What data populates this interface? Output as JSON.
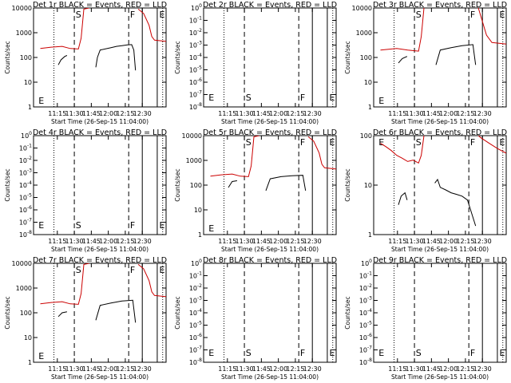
{
  "window": {
    "title": "RHESSI detector quicklook panels"
  },
  "chart_data": [
    {
      "type": "line",
      "title": "Det 1r BLACK = Events, RED = LLD",
      "xlabel": "Start Time (26-Sep-15 11:04:00)",
      "ylabel": "Counts/sec",
      "yscale": "log",
      "ylim": [
        1,
        10000
      ],
      "yticks": [
        "1",
        "10",
        "100",
        "1000",
        "10000"
      ],
      "xticks": [
        "11:15",
        "11:30",
        "11:45",
        "12:00",
        "12:15",
        "12:30"
      ],
      "markers": [
        "E",
        "S",
        "F",
        "E"
      ],
      "series": [
        {
          "name": "Events",
          "color": "#000000",
          "segments": [
            [
              [
                11.33,
                50
              ],
              [
                11.38,
                80
              ],
              [
                11.45,
                110
              ],
              [
                11.49,
                120
              ]
            ],
            [
              [
                12.02,
                40
              ],
              [
                12.05,
                100
              ],
              [
                12.1,
                200
              ],
              [
                12.3,
                250
              ],
              [
                12.4,
                280
              ],
              [
                12.5,
                300
              ],
              [
                12.6,
                320
              ],
              [
                12.68,
                330
              ],
              [
                12.72,
                200
              ],
              [
                12.75,
                30
              ]
            ]
          ]
        },
        {
          "name": "LLD",
          "color": "#cc0000",
          "segments": [
            [
              [
                11.0,
                230
              ],
              [
                11.2,
                260
              ],
              [
                11.4,
                280
              ],
              [
                11.55,
                230
              ],
              [
                11.7,
                220
              ],
              [
                11.75,
                600
              ],
              [
                11.8,
                9000
              ],
              [
                11.9,
                10000
              ]
            ],
            [
              [
                12.8,
                9000
              ],
              [
                12.9,
                6000
              ],
              [
                13.0,
                2000
              ],
              [
                13.05,
                700
              ],
              [
                13.1,
                500
              ],
              [
                13.3,
                450
              ],
              [
                13.5,
                350
              ],
              [
                13.7,
                300
              ],
              [
                13.9,
                270
              ],
              [
                14.1,
                300
              ],
              [
                14.3,
                400
              ],
              [
                14.45,
                450
              ]
            ]
          ]
        }
      ]
    },
    {
      "type": "line",
      "title": "Det 2r BLACK = Events, RED = LLD",
      "xlabel": "Start Time (26-Sep-15 11:04:00)",
      "ylabel": "Counts/sec",
      "yscale": "log",
      "ylim": [
        "10^0",
        "10^-8"
      ],
      "yticks": [
        "10^0",
        "10^-1",
        "10^-2",
        "10^-3",
        "10^-4",
        "10^-5",
        "10^-6",
        "10^-7",
        "10^-8"
      ],
      "xticks": [
        "11:15",
        "11:30",
        "11:45",
        "12:00",
        "12:15",
        "12:30"
      ],
      "markers": [
        "E",
        "S",
        "F",
        "E"
      ],
      "series": []
    },
    {
      "type": "line",
      "title": "Det 3r BLACK = Events, RED = LLD",
      "xlabel": "Start Time (26-Sep-15 11:04:00)",
      "ylabel": "Counts/sec",
      "yscale": "log",
      "ylim": [
        1,
        10000
      ],
      "yticks": [
        "1",
        "10",
        "100",
        "1000",
        "10000"
      ],
      "xticks": [
        "11:15",
        "11:30",
        "11:45",
        "12:00",
        "12:15",
        "12:30"
      ],
      "markers": [
        "E",
        "S",
        "F",
        "E"
      ],
      "series": [
        {
          "name": "Events",
          "color": "#000000",
          "segments": [
            [
              [
                11.33,
                60
              ],
              [
                11.4,
                90
              ],
              [
                11.49,
                110
              ]
            ],
            [
              [
                12.02,
                50
              ],
              [
                12.1,
                200
              ],
              [
                12.3,
                250
              ],
              [
                12.5,
                300
              ],
              [
                12.7,
                330
              ],
              [
                12.75,
                50
              ]
            ]
          ]
        },
        {
          "name": "LLD",
          "color": "#cc0000",
          "segments": [
            [
              [
                11.0,
                200
              ],
              [
                11.3,
                230
              ],
              [
                11.5,
                200
              ],
              [
                11.7,
                180
              ],
              [
                11.75,
                700
              ],
              [
                11.8,
                10000
              ]
            ],
            [
              [
                12.8,
                10000
              ],
              [
                12.95,
                800
              ],
              [
                13.05,
                400
              ],
              [
                13.3,
                350
              ],
              [
                13.6,
                300
              ],
              [
                13.9,
                280
              ],
              [
                14.2,
                300
              ],
              [
                14.45,
                350
              ]
            ]
          ]
        }
      ]
    },
    {
      "type": "line",
      "title": "Det 4r BLACK = Events, RED = LLD",
      "xlabel": "Start Time (26-Sep-15 11:04:00)",
      "ylabel": "Counts/sec",
      "yscale": "log",
      "ylim": [
        "10^0",
        "10^-8"
      ],
      "yticks": [
        "10^0",
        "10^-1",
        "10^-2",
        "10^-3",
        "10^-4",
        "10^-5",
        "10^-6",
        "10^-7",
        "10^-8"
      ],
      "xticks": [
        "11:15",
        "11:30",
        "11:45",
        "12:00",
        "12:15",
        "12:30"
      ],
      "markers": [
        "E",
        "S",
        "F",
        "E"
      ],
      "series": []
    },
    {
      "type": "line",
      "title": "Det 5r BLACK = Events, RED = LLD",
      "xlabel": "Start Time (26-Sep-15 11:04:00)",
      "ylabel": "Counts/sec",
      "yscale": "log",
      "ylim": [
        1,
        10000
      ],
      "yticks": [
        "1",
        "10",
        "100",
        "1000",
        "10000"
      ],
      "xticks": [
        "11:15",
        "11:30",
        "11:45",
        "12:00",
        "12:15",
        "12:30"
      ],
      "markers": [
        "E",
        "S",
        "F",
        "E"
      ],
      "series": [
        {
          "name": "Events",
          "color": "#000000",
          "segments": [
            [
              [
                11.33,
                80
              ],
              [
                11.4,
                140
              ],
              [
                11.49,
                150
              ]
            ],
            [
              [
                12.02,
                60
              ],
              [
                12.1,
                180
              ],
              [
                12.3,
                220
              ],
              [
                12.5,
                240
              ],
              [
                12.7,
                250
              ],
              [
                12.75,
                60
              ]
            ]
          ]
        },
        {
          "name": "LLD",
          "color": "#cc0000",
          "segments": [
            [
              [
                11.0,
                230
              ],
              [
                11.2,
                260
              ],
              [
                11.4,
                280
              ],
              [
                11.55,
                230
              ],
              [
                11.7,
                220
              ],
              [
                11.75,
                600
              ],
              [
                11.8,
                9000
              ],
              [
                11.9,
                10000
              ]
            ],
            [
              [
                12.8,
                9000
              ],
              [
                12.9,
                6000
              ],
              [
                13.0,
                2000
              ],
              [
                13.05,
                700
              ],
              [
                13.1,
                500
              ],
              [
                13.3,
                450
              ],
              [
                13.5,
                350
              ],
              [
                13.7,
                300
              ],
              [
                13.9,
                270
              ],
              [
                14.1,
                300
              ],
              [
                14.3,
                400
              ],
              [
                14.45,
                450
              ]
            ]
          ]
        }
      ]
    },
    {
      "type": "line",
      "title": "Det 6r BLACK = Events, RED = LLD",
      "xlabel": "Start Time (26-Sep-15 11:04:00)",
      "ylabel": "Counts/sec",
      "yscale": "log",
      "ylim": [
        1,
        100
      ],
      "yticks": [
        "1",
        "10",
        "100"
      ],
      "xticks": [
        "11:15",
        "11:30",
        "11:45",
        "12:00",
        "12:15",
        "12:30"
      ],
      "markers": [
        "E",
        "S",
        "F",
        "E"
      ],
      "series": [
        {
          "name": "Events",
          "color": "#000000",
          "segments": [
            [
              [
                11.33,
                4
              ],
              [
                11.38,
                6
              ],
              [
                11.45,
                7
              ],
              [
                11.49,
                5
              ]
            ],
            [
              [
                12.0,
                11
              ],
              [
                12.05,
                13
              ],
              [
                12.1,
                9
              ],
              [
                12.2,
                8
              ],
              [
                12.3,
                7
              ],
              [
                12.4,
                6.5
              ],
              [
                12.5,
                6
              ],
              [
                12.6,
                5
              ],
              [
                12.75,
                1.5
              ]
            ]
          ]
        },
        {
          "name": "LLD",
          "color": "#cc0000",
          "segments": [
            [
              [
                11.0,
                70
              ],
              [
                11.1,
                60
              ],
              [
                11.2,
                50
              ],
              [
                11.3,
                40
              ],
              [
                11.4,
                35
              ],
              [
                11.5,
                30
              ],
              [
                11.6,
                32
              ],
              [
                11.7,
                28
              ],
              [
                11.75,
                40
              ],
              [
                11.8,
                100
              ]
            ],
            [
              [
                12.8,
                100
              ],
              [
                12.85,
                90
              ],
              [
                13.0,
                70
              ],
              [
                13.15,
                55
              ],
              [
                13.3,
                45
              ],
              [
                13.45,
                38
              ],
              [
                13.6,
                35
              ],
              [
                13.75,
                36
              ],
              [
                13.9,
                40
              ],
              [
                14.05,
                45
              ],
              [
                14.2,
                55
              ],
              [
                14.35,
                65
              ],
              [
                14.45,
                75
              ]
            ]
          ]
        }
      ]
    },
    {
      "type": "line",
      "title": "Det 7r BLACK = Events, RED = LLD",
      "xlabel": "Start Time (26-Sep-15 11:04:00)",
      "ylabel": "Counts/sec",
      "yscale": "log",
      "ylim": [
        1,
        10000
      ],
      "yticks": [
        "1",
        "10",
        "100",
        "1000",
        "10000"
      ],
      "xticks": [
        "11:15",
        "11:30",
        "11:45",
        "12:00",
        "12:15",
        "12:30"
      ],
      "markers": [
        "E",
        "S",
        "F",
        "E"
      ],
      "series": [
        {
          "name": "Events",
          "color": "#000000",
          "segments": [
            [
              [
                11.33,
                70
              ],
              [
                11.4,
                100
              ],
              [
                11.49,
                110
              ]
            ],
            [
              [
                12.02,
                50
              ],
              [
                12.1,
                200
              ],
              [
                12.3,
                250
              ],
              [
                12.5,
                300
              ],
              [
                12.7,
                320
              ],
              [
                12.75,
                40
              ]
            ]
          ]
        },
        {
          "name": "LLD",
          "color": "#cc0000",
          "segments": [
            [
              [
                11.0,
                230
              ],
              [
                11.2,
                260
              ],
              [
                11.4,
                280
              ],
              [
                11.55,
                230
              ],
              [
                11.7,
                220
              ],
              [
                11.75,
                600
              ],
              [
                11.8,
                9000
              ],
              [
                11.9,
                10000
              ]
            ],
            [
              [
                12.8,
                9000
              ],
              [
                12.9,
                6000
              ],
              [
                13.0,
                2000
              ],
              [
                13.05,
                700
              ],
              [
                13.1,
                500
              ],
              [
                13.3,
                450
              ],
              [
                13.5,
                350
              ],
              [
                13.7,
                300
              ],
              [
                13.9,
                270
              ],
              [
                14.1,
                300
              ],
              [
                14.3,
                400
              ],
              [
                14.45,
                450
              ]
            ]
          ]
        }
      ]
    },
    {
      "type": "line",
      "title": "Det 8r BLACK = Events, RED = LLD",
      "xlabel": "Start Time (26-Sep-15 11:04:00)",
      "ylabel": "Counts/sec",
      "yscale": "log",
      "ylim": [
        "10^0",
        "10^-8"
      ],
      "yticks": [
        "10^0",
        "10^-1",
        "10^-2",
        "10^-3",
        "10^-4",
        "10^-5",
        "10^-6",
        "10^-7",
        "10^-8"
      ],
      "xticks": [
        "11:15",
        "11:30",
        "11:45",
        "12:00",
        "12:15",
        "12:30"
      ],
      "markers": [
        "E",
        "S",
        "F",
        "E"
      ],
      "series": []
    },
    {
      "type": "line",
      "title": "Det 9r BLACK = Events, RED = LLD",
      "xlabel": "Start Time (26-Sep-15 11:04:00)",
      "ylabel": "Counts/sec",
      "yscale": "log",
      "ylim": [
        "10^0",
        "10^-8"
      ],
      "yticks": [
        "10^0",
        "10^-1",
        "10^-2",
        "10^-3",
        "10^-4",
        "10^-5",
        "10^-6",
        "10^-7",
        "10^-8"
      ],
      "xticks": [
        "11:15",
        "11:30",
        "11:45",
        "12:00",
        "12:15",
        "12:30"
      ],
      "markers": [
        "E",
        "S",
        "F",
        "E"
      ],
      "series": []
    }
  ]
}
